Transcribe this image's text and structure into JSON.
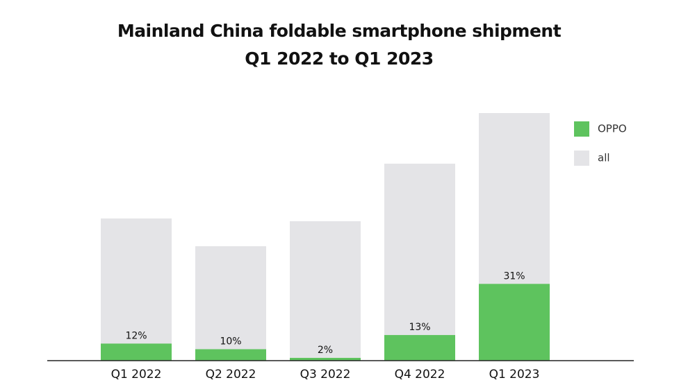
{
  "chart_data": {
    "type": "bar",
    "title": [
      "Mainland China foldable smartphone shipment",
      "Q1 2022 to Q1 2023"
    ],
    "categories": [
      "Q1 2022",
      "Q2 2022",
      "Q3 2022",
      "Q4 2022",
      "Q1 2023"
    ],
    "series": [
      {
        "name": "OPPO",
        "color": "#5ec35e",
        "values": [
          12,
          10,
          2,
          13,
          31
        ],
        "value_labels": [
          "12%",
          "10%",
          "2%",
          "13%",
          "31%"
        ]
      },
      {
        "name": "all",
        "color": "#e4e4e7",
        "values": [
          205,
          165,
          201,
          284,
          357
        ]
      }
    ]
  }
}
